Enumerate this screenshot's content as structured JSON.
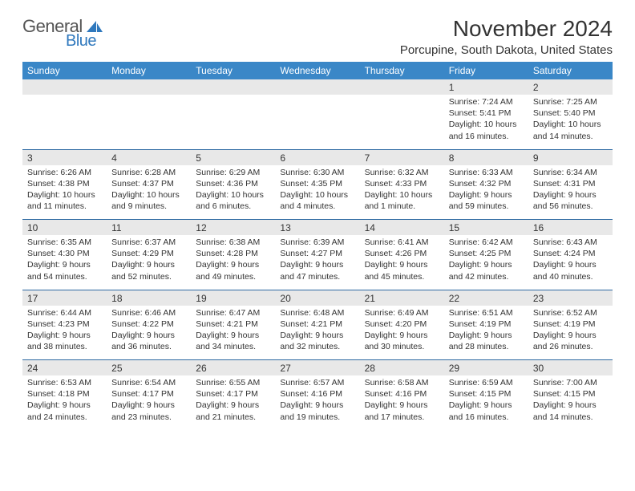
{
  "logo": {
    "text1": "General",
    "text2": "Blue"
  },
  "title": "November 2024",
  "location": "Porcupine, South Dakota, United States",
  "colors": {
    "header_bg": "#3a87c7",
    "header_fg": "#ffffff",
    "daynum_bg": "#e8e8e8",
    "separator": "#2f6aa3",
    "logo_blue": "#2f78bd"
  },
  "day_headers": [
    "Sunday",
    "Monday",
    "Tuesday",
    "Wednesday",
    "Thursday",
    "Friday",
    "Saturday"
  ],
  "weeks": [
    [
      {
        "n": "",
        "lines": []
      },
      {
        "n": "",
        "lines": []
      },
      {
        "n": "",
        "lines": []
      },
      {
        "n": "",
        "lines": []
      },
      {
        "n": "",
        "lines": []
      },
      {
        "n": "1",
        "lines": [
          "Sunrise: 7:24 AM",
          "Sunset: 5:41 PM",
          "Daylight: 10 hours and 16 minutes."
        ]
      },
      {
        "n": "2",
        "lines": [
          "Sunrise: 7:25 AM",
          "Sunset: 5:40 PM",
          "Daylight: 10 hours and 14 minutes."
        ]
      }
    ],
    [
      {
        "n": "3",
        "lines": [
          "Sunrise: 6:26 AM",
          "Sunset: 4:38 PM",
          "Daylight: 10 hours and 11 minutes."
        ]
      },
      {
        "n": "4",
        "lines": [
          "Sunrise: 6:28 AM",
          "Sunset: 4:37 PM",
          "Daylight: 10 hours and 9 minutes."
        ]
      },
      {
        "n": "5",
        "lines": [
          "Sunrise: 6:29 AM",
          "Sunset: 4:36 PM",
          "Daylight: 10 hours and 6 minutes."
        ]
      },
      {
        "n": "6",
        "lines": [
          "Sunrise: 6:30 AM",
          "Sunset: 4:35 PM",
          "Daylight: 10 hours and 4 minutes."
        ]
      },
      {
        "n": "7",
        "lines": [
          "Sunrise: 6:32 AM",
          "Sunset: 4:33 PM",
          "Daylight: 10 hours and 1 minute."
        ]
      },
      {
        "n": "8",
        "lines": [
          "Sunrise: 6:33 AM",
          "Sunset: 4:32 PM",
          "Daylight: 9 hours and 59 minutes."
        ]
      },
      {
        "n": "9",
        "lines": [
          "Sunrise: 6:34 AM",
          "Sunset: 4:31 PM",
          "Daylight: 9 hours and 56 minutes."
        ]
      }
    ],
    [
      {
        "n": "10",
        "lines": [
          "Sunrise: 6:35 AM",
          "Sunset: 4:30 PM",
          "Daylight: 9 hours and 54 minutes."
        ]
      },
      {
        "n": "11",
        "lines": [
          "Sunrise: 6:37 AM",
          "Sunset: 4:29 PM",
          "Daylight: 9 hours and 52 minutes."
        ]
      },
      {
        "n": "12",
        "lines": [
          "Sunrise: 6:38 AM",
          "Sunset: 4:28 PM",
          "Daylight: 9 hours and 49 minutes."
        ]
      },
      {
        "n": "13",
        "lines": [
          "Sunrise: 6:39 AM",
          "Sunset: 4:27 PM",
          "Daylight: 9 hours and 47 minutes."
        ]
      },
      {
        "n": "14",
        "lines": [
          "Sunrise: 6:41 AM",
          "Sunset: 4:26 PM",
          "Daylight: 9 hours and 45 minutes."
        ]
      },
      {
        "n": "15",
        "lines": [
          "Sunrise: 6:42 AM",
          "Sunset: 4:25 PM",
          "Daylight: 9 hours and 42 minutes."
        ]
      },
      {
        "n": "16",
        "lines": [
          "Sunrise: 6:43 AM",
          "Sunset: 4:24 PM",
          "Daylight: 9 hours and 40 minutes."
        ]
      }
    ],
    [
      {
        "n": "17",
        "lines": [
          "Sunrise: 6:44 AM",
          "Sunset: 4:23 PM",
          "Daylight: 9 hours and 38 minutes."
        ]
      },
      {
        "n": "18",
        "lines": [
          "Sunrise: 6:46 AM",
          "Sunset: 4:22 PM",
          "Daylight: 9 hours and 36 minutes."
        ]
      },
      {
        "n": "19",
        "lines": [
          "Sunrise: 6:47 AM",
          "Sunset: 4:21 PM",
          "Daylight: 9 hours and 34 minutes."
        ]
      },
      {
        "n": "20",
        "lines": [
          "Sunrise: 6:48 AM",
          "Sunset: 4:21 PM",
          "Daylight: 9 hours and 32 minutes."
        ]
      },
      {
        "n": "21",
        "lines": [
          "Sunrise: 6:49 AM",
          "Sunset: 4:20 PM",
          "Daylight: 9 hours and 30 minutes."
        ]
      },
      {
        "n": "22",
        "lines": [
          "Sunrise: 6:51 AM",
          "Sunset: 4:19 PM",
          "Daylight: 9 hours and 28 minutes."
        ]
      },
      {
        "n": "23",
        "lines": [
          "Sunrise: 6:52 AM",
          "Sunset: 4:19 PM",
          "Daylight: 9 hours and 26 minutes."
        ]
      }
    ],
    [
      {
        "n": "24",
        "lines": [
          "Sunrise: 6:53 AM",
          "Sunset: 4:18 PM",
          "Daylight: 9 hours and 24 minutes."
        ]
      },
      {
        "n": "25",
        "lines": [
          "Sunrise: 6:54 AM",
          "Sunset: 4:17 PM",
          "Daylight: 9 hours and 23 minutes."
        ]
      },
      {
        "n": "26",
        "lines": [
          "Sunrise: 6:55 AM",
          "Sunset: 4:17 PM",
          "Daylight: 9 hours and 21 minutes."
        ]
      },
      {
        "n": "27",
        "lines": [
          "Sunrise: 6:57 AM",
          "Sunset: 4:16 PM",
          "Daylight: 9 hours and 19 minutes."
        ]
      },
      {
        "n": "28",
        "lines": [
          "Sunrise: 6:58 AM",
          "Sunset: 4:16 PM",
          "Daylight: 9 hours and 17 minutes."
        ]
      },
      {
        "n": "29",
        "lines": [
          "Sunrise: 6:59 AM",
          "Sunset: 4:15 PM",
          "Daylight: 9 hours and 16 minutes."
        ]
      },
      {
        "n": "30",
        "lines": [
          "Sunrise: 7:00 AM",
          "Sunset: 4:15 PM",
          "Daylight: 9 hours and 14 minutes."
        ]
      }
    ]
  ]
}
